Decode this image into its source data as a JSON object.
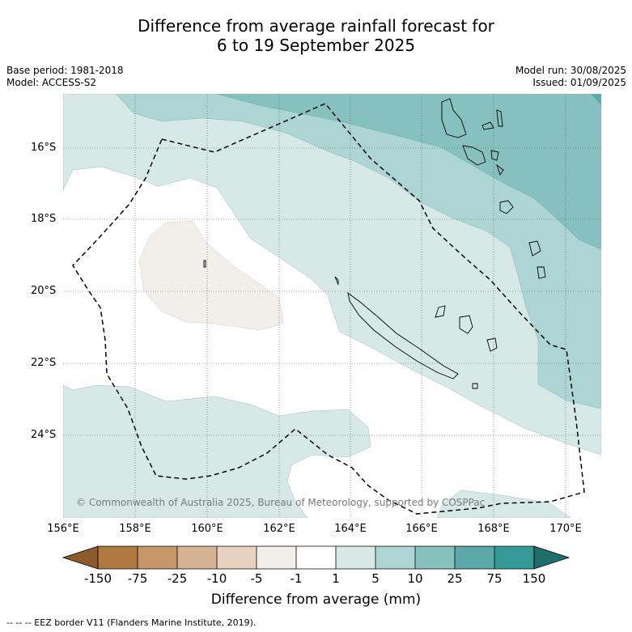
{
  "header": {
    "title_line1": "Difference from average rainfall forecast for",
    "title_line2": "6 to 19 September 2025",
    "base_period": "Base period: 1981-2018",
    "model": "Model: ACCESS-S2",
    "model_run": "Model run: 30/08/2025",
    "issued": "Issued: 01/09/2025"
  },
  "map": {
    "lat_labels": [
      "16°S",
      "18°S",
      "20°S",
      "22°S",
      "24°S"
    ],
    "lon_labels": [
      "156°E",
      "158°E",
      "160°E",
      "162°E",
      "164°E",
      "166°E",
      "168°E",
      "170°E"
    ],
    "copyright": "© Commonwealth of Australia 2025, Bureau of Meteorology, supported by COSPPac"
  },
  "colorbar": {
    "ticks": [
      "-150",
      "-75",
      "-25",
      "-10",
      "-5",
      "-1",
      "1",
      "5",
      "10",
      "25",
      "75",
      "150"
    ],
    "title": "Difference from average (mm)",
    "colors": {
      "below_-150": "#8c5a2b",
      "-150_-75": "#b0793f",
      "-75_-25": "#c49668",
      "-25_-10": "#d4b292",
      "-10_-5": "#e6d2bf",
      "-5_-1": "#f2eee9",
      "-1_1": "#ffffff",
      "1_5": "#d6e9e7",
      "5_10": "#add5d4",
      "10_25": "#86c1bf",
      "25_75": "#5ba9a9",
      "75_150": "#359a95",
      "above_150": "#1f6e6b"
    }
  },
  "footnote": "--  --  -- EEZ border V11 (Flanders Marine Institute, 2019)."
}
